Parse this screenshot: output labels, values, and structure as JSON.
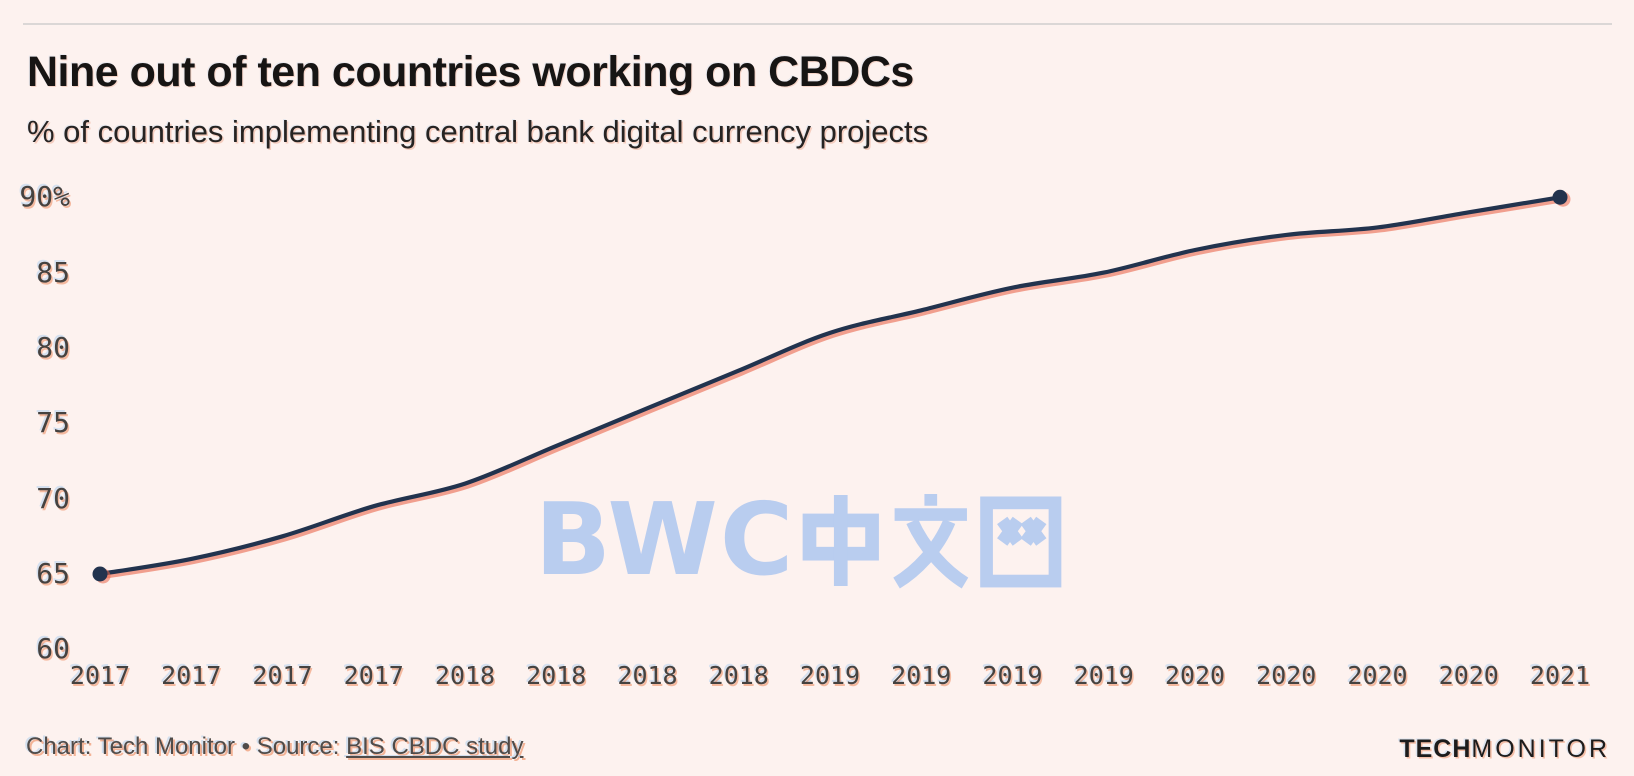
{
  "page": {
    "background": "#fdf2ef"
  },
  "header": {
    "title": "Nine out of ten countries working on CBDCs",
    "subtitle": "% of countries implementing central bank digital currency projects"
  },
  "watermark": {
    "text": "BWC中文网",
    "latin": "BWC",
    "color": "#b4caf0"
  },
  "footer": {
    "credit_prefix": "Chart: Tech Monitor • Source: ",
    "source_link": "BIS CBDC study",
    "brand_bold": "TECH",
    "brand_regular": "MONITOR"
  },
  "chart_data": {
    "type": "line",
    "title": "Nine out of ten countries working on CBDCs",
    "subtitle": "% of countries implementing central bank digital currency projects",
    "x": [
      "2017",
      "2017",
      "2017",
      "2017",
      "2018",
      "2018",
      "2018",
      "2018",
      "2019",
      "2019",
      "2019",
      "2019",
      "2020",
      "2020",
      "2020",
      "2020",
      "2021"
    ],
    "series": [
      {
        "name": "% of countries implementing CBDC projects",
        "values": [
          65,
          66,
          67.5,
          69.5,
          71,
          73.5,
          76,
          78.5,
          81,
          82.5,
          84,
          85,
          86.5,
          87.5,
          88,
          89,
          90
        ]
      }
    ],
    "y_ticks": [
      "90%",
      "85",
      "80",
      "75",
      "70",
      "65",
      "60"
    ],
    "y_tick_values": [
      90,
      85,
      80,
      75,
      70,
      65,
      60
    ],
    "ylim": [
      60,
      92
    ],
    "grid": false,
    "legend": "none",
    "line_color": "#22334e",
    "ghost_color": "#e9684c",
    "endpoint_markers": true
  }
}
